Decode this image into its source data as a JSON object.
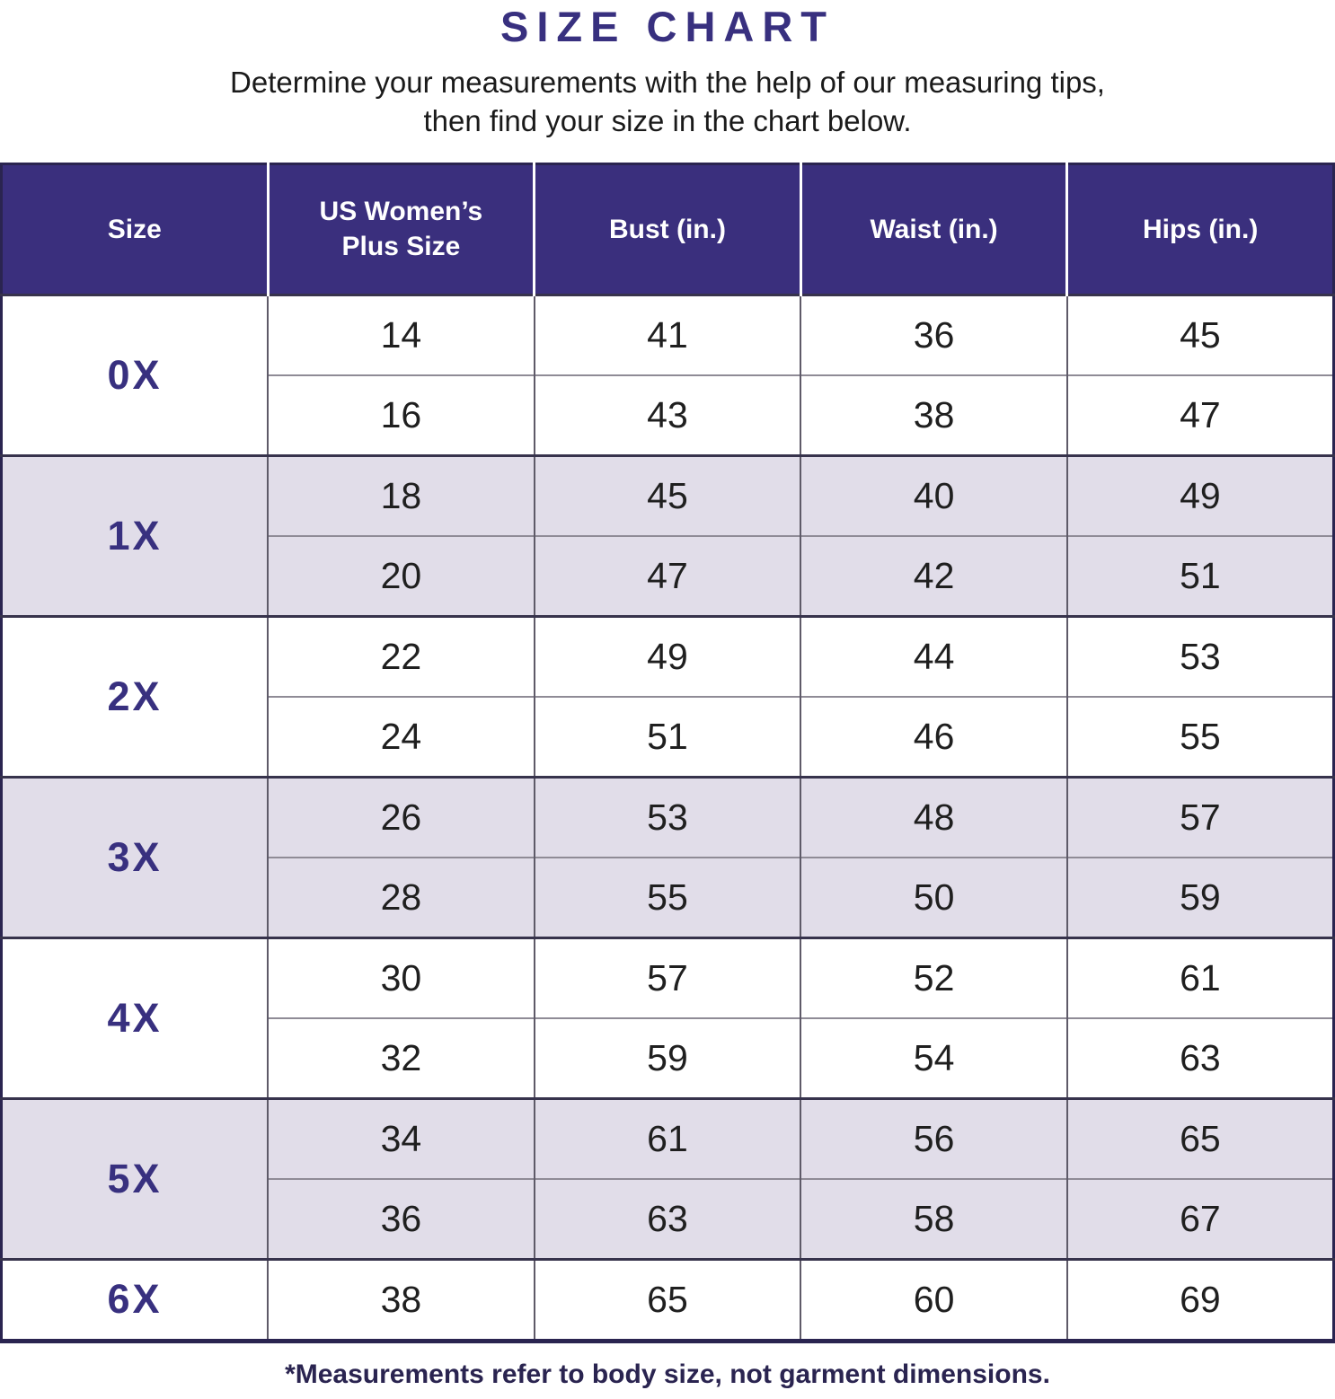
{
  "page": {
    "title": "SIZE CHART",
    "subtitle_line1": "Determine your measurements with the help of our measuring tips,",
    "subtitle_line2": "then find your size in the chart below.",
    "footnote": "*Measurements refer to body size, not garment dimensions."
  },
  "colors": {
    "header_bg": "#3a2f7d",
    "accent_text": "#38307f",
    "shaded_row_bg": "#e1dde9",
    "plain_row_bg": "#ffffff",
    "outer_border": "#2a2450"
  },
  "chart_data": {
    "type": "table",
    "title": "SIZE CHART",
    "columns": [
      "Size",
      "US Women’s Plus Size",
      "Bust (in.)",
      "Waist (in.)",
      "Hips (in.)"
    ],
    "groups": [
      {
        "size": "0X",
        "shaded": false,
        "rows": [
          [
            14,
            41,
            36,
            45
          ],
          [
            16,
            43,
            38,
            47
          ]
        ]
      },
      {
        "size": "1X",
        "shaded": true,
        "rows": [
          [
            18,
            45,
            40,
            49
          ],
          [
            20,
            47,
            42,
            51
          ]
        ]
      },
      {
        "size": "2X",
        "shaded": false,
        "rows": [
          [
            22,
            49,
            44,
            53
          ],
          [
            24,
            51,
            46,
            55
          ]
        ]
      },
      {
        "size": "3X",
        "shaded": true,
        "rows": [
          [
            26,
            53,
            48,
            57
          ],
          [
            28,
            55,
            50,
            59
          ]
        ]
      },
      {
        "size": "4X",
        "shaded": false,
        "rows": [
          [
            30,
            57,
            52,
            61
          ],
          [
            32,
            59,
            54,
            63
          ]
        ]
      },
      {
        "size": "5X",
        "shaded": true,
        "rows": [
          [
            34,
            61,
            56,
            65
          ],
          [
            36,
            63,
            58,
            67
          ]
        ]
      },
      {
        "size": "6X",
        "shaded": false,
        "rows": [
          [
            38,
            65,
            60,
            69
          ]
        ]
      }
    ]
  }
}
